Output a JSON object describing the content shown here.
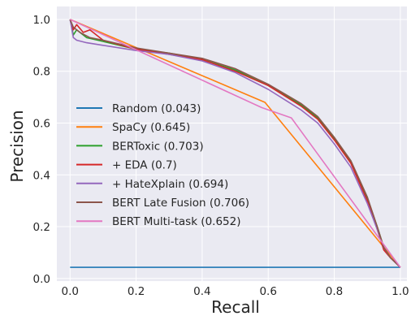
{
  "chart_data": {
    "type": "line",
    "title": "",
    "xlabel": "Recall",
    "ylabel": "Precision",
    "xlim": [
      -0.04,
      1.02
    ],
    "ylim": [
      -0.01,
      1.05
    ],
    "xticks": [
      "0.0",
      "0.2",
      "0.4",
      "0.6",
      "0.8",
      "1.0"
    ],
    "yticks": [
      "0.0",
      "0.2",
      "0.4",
      "0.6",
      "0.8",
      "1.0"
    ],
    "grid": true,
    "background": "#eaeaf2",
    "legend_position": "center-left",
    "series": [
      {
        "name": "Random (0.043)",
        "color": "#1f77b4",
        "points": [
          [
            0.0,
            0.043
          ],
          [
            1.0,
            0.043
          ]
        ]
      },
      {
        "name": "SpaCy (0.645)",
        "color": "#ff7f0e",
        "points": [
          [
            0.0,
            1.0
          ],
          [
            0.59,
            0.68
          ],
          [
            1.0,
            0.043
          ]
        ]
      },
      {
        "name": "BERToxic (0.703)",
        "color": "#2ca02c",
        "points": [
          [
            0.0,
            1.0
          ],
          [
            0.01,
            0.94
          ],
          [
            0.02,
            0.96
          ],
          [
            0.05,
            0.93
          ],
          [
            0.1,
            0.915
          ],
          [
            0.2,
            0.885
          ],
          [
            0.3,
            0.87
          ],
          [
            0.4,
            0.845
          ],
          [
            0.5,
            0.805
          ],
          [
            0.6,
            0.745
          ],
          [
            0.7,
            0.67
          ],
          [
            0.75,
            0.62
          ],
          [
            0.8,
            0.54
          ],
          [
            0.85,
            0.45
          ],
          [
            0.9,
            0.31
          ],
          [
            0.93,
            0.2
          ],
          [
            0.95,
            0.12
          ],
          [
            0.97,
            0.08
          ],
          [
            1.0,
            0.043
          ]
        ]
      },
      {
        "name": "+ EDA (0.7)",
        "color": "#d62728",
        "points": [
          [
            0.0,
            1.0
          ],
          [
            0.01,
            0.96
          ],
          [
            0.02,
            0.98
          ],
          [
            0.04,
            0.95
          ],
          [
            0.06,
            0.96
          ],
          [
            0.1,
            0.92
          ],
          [
            0.2,
            0.885
          ],
          [
            0.3,
            0.865
          ],
          [
            0.4,
            0.845
          ],
          [
            0.5,
            0.8
          ],
          [
            0.6,
            0.745
          ],
          [
            0.7,
            0.665
          ],
          [
            0.75,
            0.615
          ],
          [
            0.8,
            0.535
          ],
          [
            0.85,
            0.445
          ],
          [
            0.9,
            0.3
          ],
          [
            0.93,
            0.19
          ],
          [
            0.95,
            0.11
          ],
          [
            0.97,
            0.08
          ],
          [
            1.0,
            0.043
          ]
        ]
      },
      {
        "name": "+ HateXplain (0.694)",
        "color": "#9467bd",
        "points": [
          [
            0.0,
            1.0
          ],
          [
            0.01,
            0.93
          ],
          [
            0.02,
            0.92
          ],
          [
            0.05,
            0.91
          ],
          [
            0.1,
            0.9
          ],
          [
            0.2,
            0.88
          ],
          [
            0.3,
            0.865
          ],
          [
            0.4,
            0.84
          ],
          [
            0.5,
            0.795
          ],
          [
            0.6,
            0.73
          ],
          [
            0.7,
            0.65
          ],
          [
            0.75,
            0.6
          ],
          [
            0.8,
            0.52
          ],
          [
            0.85,
            0.43
          ],
          [
            0.9,
            0.29
          ],
          [
            0.93,
            0.19
          ],
          [
            0.95,
            0.12
          ],
          [
            0.97,
            0.08
          ],
          [
            1.0,
            0.043
          ]
        ]
      },
      {
        "name": "BERT Late Fusion (0.706)",
        "color": "#8c564b",
        "points": [
          [
            0.0,
            1.0
          ],
          [
            0.01,
            0.97
          ],
          [
            0.03,
            0.95
          ],
          [
            0.06,
            0.93
          ],
          [
            0.1,
            0.92
          ],
          [
            0.2,
            0.89
          ],
          [
            0.3,
            0.87
          ],
          [
            0.4,
            0.85
          ],
          [
            0.5,
            0.81
          ],
          [
            0.6,
            0.75
          ],
          [
            0.7,
            0.675
          ],
          [
            0.75,
            0.625
          ],
          [
            0.8,
            0.545
          ],
          [
            0.85,
            0.455
          ],
          [
            0.9,
            0.315
          ],
          [
            0.93,
            0.2
          ],
          [
            0.95,
            0.12
          ],
          [
            0.97,
            0.08
          ],
          [
            1.0,
            0.043
          ]
        ]
      },
      {
        "name": "BERT Multi-task (0.652)",
        "color": "#e377c2",
        "points": [
          [
            0.0,
            1.0
          ],
          [
            0.58,
            0.66
          ],
          [
            0.67,
            0.62
          ],
          [
            1.0,
            0.043
          ]
        ]
      }
    ]
  }
}
